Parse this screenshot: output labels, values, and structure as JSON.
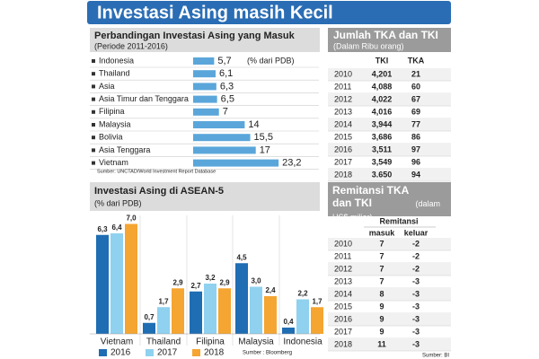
{
  "header": {
    "title": "Investasi Asing masih Kecil"
  },
  "chart_data": [
    {
      "type": "hbar",
      "title": "Perbandingan Investasi Asing yang Masuk",
      "subtitle": "(Periode 2011-2016)",
      "note": "(% dari PDB)",
      "categories": [
        "Indonesia",
        "Thailand",
        "Asia",
        "Asia Timur dan Tenggara",
        "Filipina",
        "Malaysia",
        "Bolivia",
        "Asia Tenggara",
        "Vietnam"
      ],
      "values": [
        5.7,
        6.1,
        6.3,
        6.5,
        7,
        14,
        15.5,
        17,
        23.2
      ],
      "value_labels": [
        "5,7",
        "6,1",
        "6,3",
        "6,5",
        "7",
        "14",
        "15,5",
        "17",
        "23,2"
      ],
      "color": "#5aa6da",
      "source": "Sumber: UNCTAD/World Investment Report Database"
    },
    {
      "type": "grouped-bar",
      "title": "Investasi Asing di ASEAN-5",
      "subtitle": "(% dari PDB)",
      "categories": [
        "Vietnam",
        "Thailand",
        "Filipina",
        "Malaysia",
        "Indonesia"
      ],
      "series": [
        {
          "name": "2016",
          "color": "#1f6db3",
          "values": [
            6.3,
            0.7,
            2.7,
            4.5,
            0.4
          ],
          "value_labels": [
            "6,3",
            "0,7",
            "2,7",
            "4,5",
            "0,4"
          ]
        },
        {
          "name": "2017",
          "color": "#8fd1ef",
          "values": [
            6.4,
            1.7,
            3.2,
            3.0,
            2.2
          ],
          "value_labels": [
            "6,4",
            "1,7",
            "3,2",
            "3,0",
            "2,2"
          ]
        },
        {
          "name": "2018",
          "color": "#f5a531",
          "values": [
            7.0,
            2.9,
            2.9,
            2.4,
            1.7
          ],
          "value_labels": [
            "7,0",
            "2,9",
            "2,9",
            "2,4",
            "1,7"
          ]
        }
      ],
      "source": "Sumber : Bloomberg"
    }
  ],
  "tables": [
    {
      "title": "Jumlah TKA dan TKI",
      "subtitle": "(Dalam Ribu orang)",
      "columns": [
        "TKI",
        "TKA"
      ],
      "rows": [
        [
          "2010",
          "4,201",
          "21"
        ],
        [
          "2011",
          "4,088",
          "60"
        ],
        [
          "2012",
          "4,022",
          "67"
        ],
        [
          "2013",
          "4,016",
          "69"
        ],
        [
          "2014",
          "3,944",
          "77"
        ],
        [
          "2015",
          "3,686",
          "86"
        ],
        [
          "2016",
          "3,511",
          "97"
        ],
        [
          "2017",
          "3,549",
          "96"
        ],
        [
          "2018",
          "3.650",
          "94"
        ]
      ]
    },
    {
      "title": "Remitansi TKA dan TKI",
      "subtitle": "(dalam US$ miliar)",
      "group_header": "Remitansi",
      "columns": [
        "masuk",
        "keluar"
      ],
      "rows": [
        [
          "2010",
          "7",
          "-2"
        ],
        [
          "2011",
          "7",
          "-2"
        ],
        [
          "2012",
          "7",
          "-2"
        ],
        [
          "2013",
          "7",
          "-3"
        ],
        [
          "2014",
          "8",
          "-3"
        ],
        [
          "2015",
          "9",
          "-3"
        ],
        [
          "2016",
          "9",
          "-3"
        ],
        [
          "2017",
          "9",
          "-3"
        ],
        [
          "2018",
          "11",
          "-3"
        ]
      ],
      "source": "Sumber: BI"
    }
  ]
}
